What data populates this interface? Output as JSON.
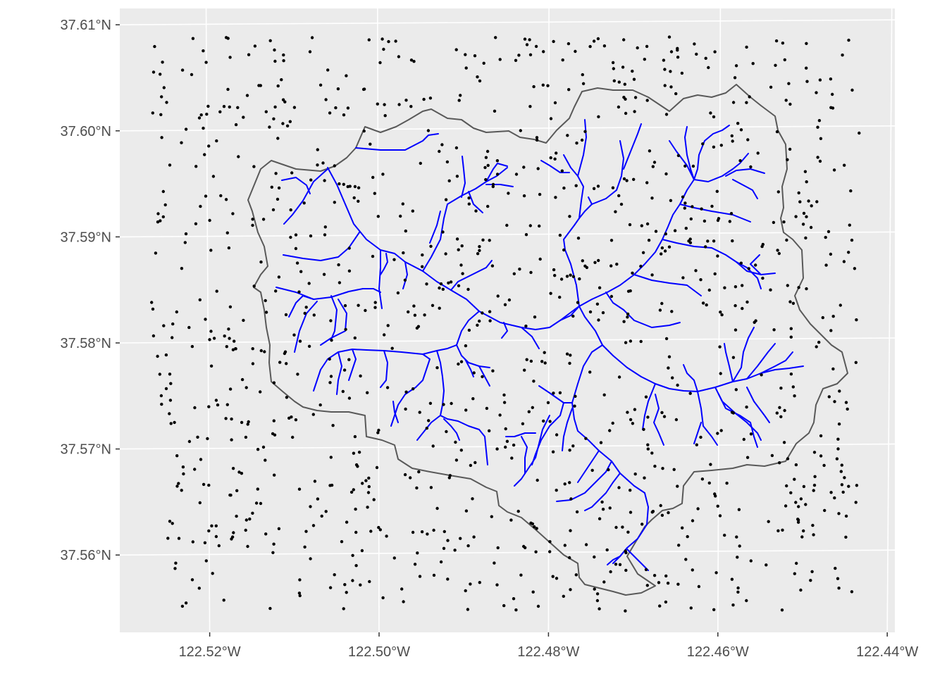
{
  "map": {
    "background": "#ebebeb",
    "grid_color": "#ffffff",
    "boundary_color": "#595959",
    "stream_color": "#0000ff",
    "point_color": "#000000",
    "y_axis": {
      "ticks": [
        {
          "value": 37.61,
          "label": "37.61°N"
        },
        {
          "value": 37.6,
          "label": "37.60°N"
        },
        {
          "value": 37.59,
          "label": "37.59°N"
        },
        {
          "value": 37.58,
          "label": "37.58°N"
        },
        {
          "value": 37.57,
          "label": "37.57°N"
        },
        {
          "value": 37.56,
          "label": "37.56°N"
        }
      ]
    },
    "x_axis": {
      "ticks": [
        {
          "value": -122.52,
          "label": "122.52°W"
        },
        {
          "value": -122.5,
          "label": "122.50°W"
        },
        {
          "value": -122.48,
          "label": "122.48°W"
        },
        {
          "value": -122.46,
          "label": "122.46°W"
        },
        {
          "value": -122.44,
          "label": "122.44°W"
        }
      ]
    },
    "layers": [
      "watershed-boundary",
      "stream-network",
      "sample-points"
    ]
  }
}
